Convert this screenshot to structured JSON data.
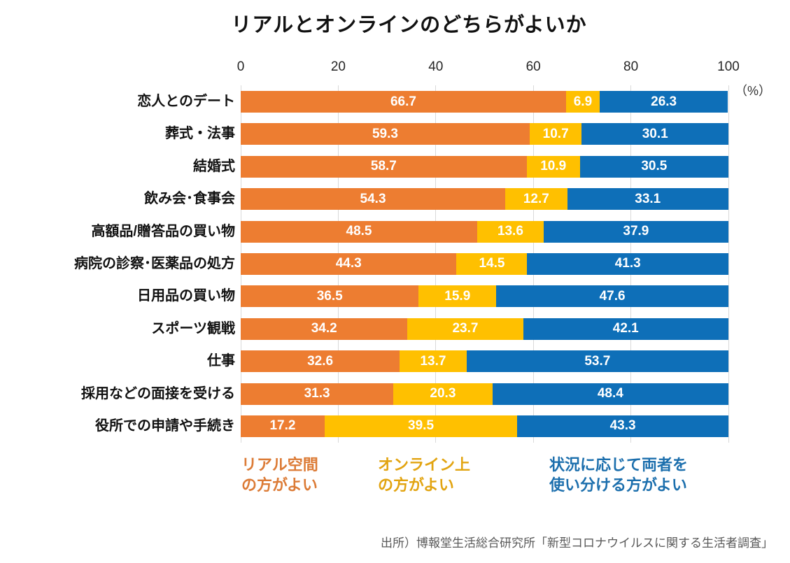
{
  "title": "リアルとオンラインのどちらがよいか",
  "axis": {
    "unit_label": "（%）"
  },
  "legend": [
    {
      "key": "real",
      "line1": "リアル空間",
      "line2": "の方がよい",
      "text_color": "#dc7b36"
    },
    {
      "key": "online",
      "line1": "オンライン上",
      "line2": "の方がよい",
      "text_color": "#e2a411"
    },
    {
      "key": "both",
      "line1": "状況に応じて両者を",
      "line2": "使い分ける方がよい",
      "text_color": "#1c6fad"
    }
  ],
  "source": "出所）博報堂生活総合研究所「新型コロナウイルスに関する生活者調査」",
  "chart_data": {
    "type": "bar",
    "orientation": "horizontal",
    "stacked": true,
    "title": "リアルとオンラインのどちらがよいか",
    "categories": [
      "恋人とのデート",
      "葬式・法事",
      "結婚式",
      "飲み会･食事会",
      "高額品/贈答品の買い物",
      "病院の診察･医薬品の処方",
      "日用品の買い物",
      "スポーツ観戦",
      "仕事",
      "採用などの面接を受ける",
      "役所での申請や手続き"
    ],
    "series": [
      {
        "name": "リアル空間の方がよい",
        "color": "#ed7d31",
        "values": [
          66.7,
          59.3,
          58.7,
          54.3,
          48.5,
          44.3,
          36.5,
          34.2,
          32.6,
          31.3,
          17.2
        ]
      },
      {
        "name": "オンライン上の方がよい",
        "color": "#ffc000",
        "values": [
          6.9,
          10.7,
          10.9,
          12.7,
          13.6,
          14.5,
          15.9,
          23.7,
          13.7,
          20.3,
          39.5
        ]
      },
      {
        "name": "状況に応じて両者を使い分ける方がよい",
        "color": "#0e6fb8",
        "values": [
          26.3,
          30.1,
          30.5,
          33.1,
          37.9,
          41.3,
          47.6,
          42.1,
          53.7,
          48.4,
          43.3
        ]
      }
    ],
    "xlim": [
      0,
      100
    ],
    "x_ticks": [
      0,
      20,
      40,
      60,
      80,
      100
    ],
    "unit": "%",
    "grid": true,
    "legend_position": "bottom"
  }
}
